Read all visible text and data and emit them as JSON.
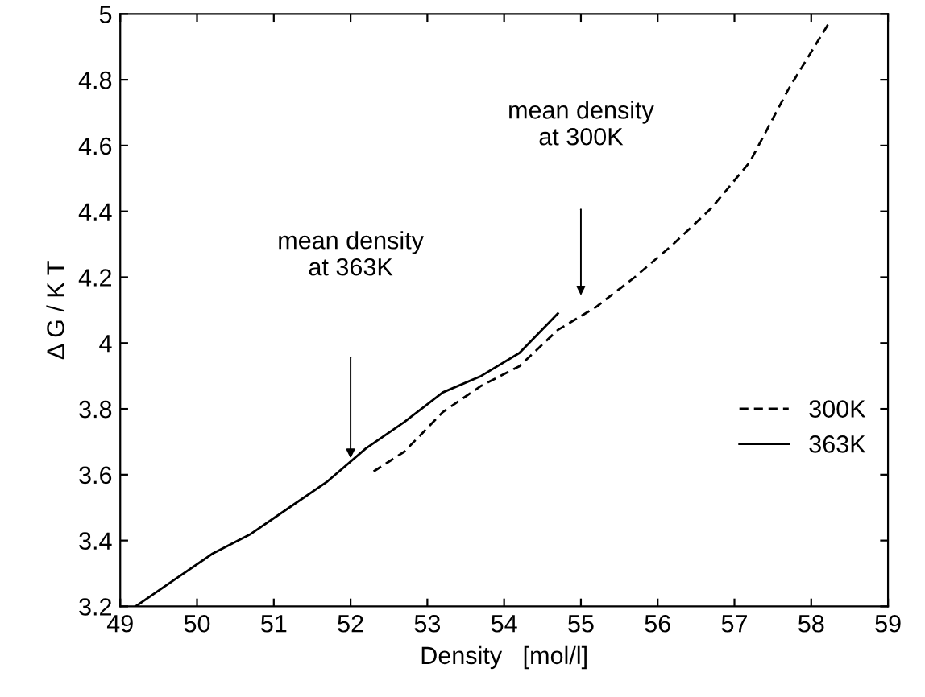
{
  "chart_data": {
    "type": "line",
    "xlabel": "Density   [mol/l]",
    "ylabel": "Δ G / K T",
    "xlim": [
      49,
      59
    ],
    "xticks": [
      49,
      50,
      51,
      52,
      53,
      54,
      55,
      56,
      57,
      58,
      59
    ],
    "ylim": [
      3.2,
      5
    ],
    "yticks": [
      3.2,
      3.4,
      3.6,
      3.8,
      4,
      4.2,
      4.4,
      4.6,
      4.8,
      5
    ],
    "grid": false,
    "legend": "right",
    "marker": "none",
    "series": [
      {
        "name": "300K",
        "color": "#000000",
        "line_style": "dashed",
        "x": [
          52.3,
          52.7,
          53.2,
          53.7,
          54.2,
          54.7,
          55.2,
          55.7,
          56.2,
          56.7,
          57.2,
          57.7,
          58.25
        ],
        "values": [
          3.61,
          3.67,
          3.79,
          3.87,
          3.93,
          4.04,
          4.11,
          4.2,
          4.3,
          4.41,
          4.55,
          4.77,
          4.98
        ]
      },
      {
        "name": "363K",
        "color": "#000000",
        "line_style": "solid",
        "x": [
          49.2,
          49.7,
          50.2,
          50.7,
          51.2,
          51.7,
          52.2,
          52.7,
          53.2,
          53.7,
          54.2,
          54.7
        ],
        "values": [
          3.2,
          3.28,
          3.36,
          3.42,
          3.5,
          3.58,
          3.68,
          3.76,
          3.85,
          3.9,
          3.97,
          4.09
        ]
      }
    ],
    "annotations": [
      "mean density\nat 363K",
      "mean density\nat 300K"
    ]
  }
}
